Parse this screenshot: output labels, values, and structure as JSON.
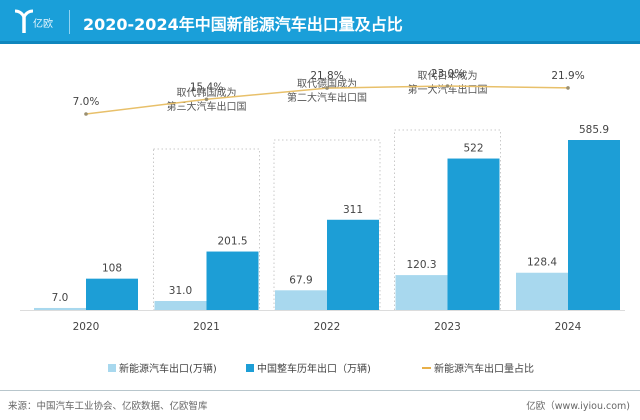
{
  "header": {
    "logo_text": "亿欧",
    "title": "2020-2024年中国新能源汽车出口量及占比"
  },
  "colors": {
    "header_bg": "#1a9fd9",
    "nev_export": "#a8d8ee",
    "total_export": "#1d9ed6",
    "share_line": "#e8c06a"
  },
  "chart_data": {
    "type": "bar",
    "title": "2020-2024年中国新能源汽车出口量及占比",
    "categories": [
      "2020",
      "2021",
      "2022",
      "2023",
      "2024"
    ],
    "series": [
      {
        "name": "新能源汽车出口(万辆)",
        "type": "bar",
        "values": [
          7.0,
          31.0,
          67.9,
          120.3,
          128.4
        ],
        "labels": [
          "7.0",
          "31.0",
          "67.9",
          "120.3",
          "128.4"
        ]
      },
      {
        "name": "中国整车历年出口（万辆)",
        "type": "bar",
        "values": [
          108,
          201.5,
          311,
          522,
          585.9
        ],
        "labels": [
          "108",
          "201.5",
          "311",
          "522",
          "585.9"
        ]
      },
      {
        "name": "新能源汽车出口量占比",
        "type": "line",
        "values": [
          7.0,
          15.4,
          21.8,
          23.0,
          21.9
        ],
        "labels": [
          "7.0%",
          "15.4%",
          "21.8%",
          "23.0%",
          "21.9%"
        ]
      }
    ],
    "annotations": [
      {
        "category": "2021",
        "lines": [
          "取代韩国成为",
          "第三大汽车出口国"
        ]
      },
      {
        "category": "2022",
        "lines": [
          "取代德国成为",
          "第二大汽车出口国"
        ]
      },
      {
        "category": "2023",
        "lines": [
          "取代日本成为",
          "第一大汽车出口国"
        ]
      }
    ],
    "xlabel": "",
    "ylabel": "",
    "ylim": [
      0,
      600
    ],
    "grid": false,
    "legend_position": "bottom"
  },
  "legend": [
    {
      "label": "新能源汽车出口(万辆)"
    },
    {
      "label": "中国整车历年出口（万辆)"
    },
    {
      "label": "新能源汽车出口量占比"
    }
  ],
  "footer": {
    "source": "来源：中国汽车工业协会、亿欧数据、亿欧智库",
    "credit": "亿欧（www.iyiou.com)"
  }
}
